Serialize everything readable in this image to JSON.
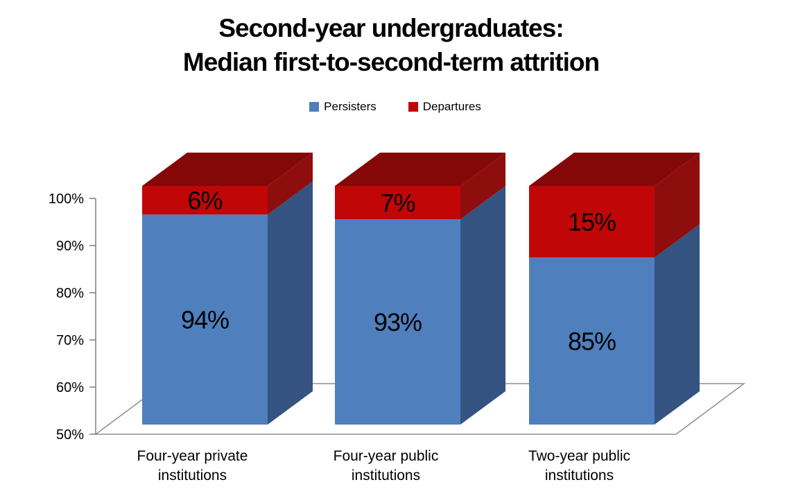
{
  "title": {
    "line1": "Second-year undergraduates:",
    "line2": "Median first-to-second-term attrition"
  },
  "chart_data": {
    "type": "bar",
    "subtype": "3d-stacked-column-percent",
    "title": "Second-year undergraduates: Median first-to-second-term attrition",
    "categories": [
      "Four-year private\ninstitutions",
      "Four-year public\ninstitutions",
      "Two-year public\ninstitutions"
    ],
    "series": [
      {
        "name": "Persisters",
        "values": [
          94,
          93,
          85
        ],
        "color_front": "#4F7FBD",
        "color_side": "#345380"
      },
      {
        "name": "Departures",
        "values": [
          6,
          7,
          15
        ],
        "color_front": "#C00606",
        "color_side": "#8E0E0E",
        "color_top": "#850808"
      }
    ],
    "data_labels": [
      [
        "94%",
        "93%",
        "85%"
      ],
      [
        "6%",
        "7%",
        "15%"
      ]
    ],
    "y_axis": {
      "min": 50,
      "max": 100,
      "ticks": [
        {
          "label": "50%",
          "value": 50
        },
        {
          "label": "60%",
          "value": 60
        },
        {
          "label": "70%",
          "value": 70
        },
        {
          "label": "80%",
          "value": 80
        },
        {
          "label": "90%",
          "value": 90
        },
        {
          "label": "100%",
          "value": 100
        }
      ]
    },
    "ylim": [
      50,
      100
    ],
    "xlabel": "",
    "ylabel": "",
    "legend_position": "top",
    "grid": false,
    "axis_color": "#7F7F7F",
    "floor_line_color": "#8E8E8E",
    "text_color": "#000000"
  }
}
